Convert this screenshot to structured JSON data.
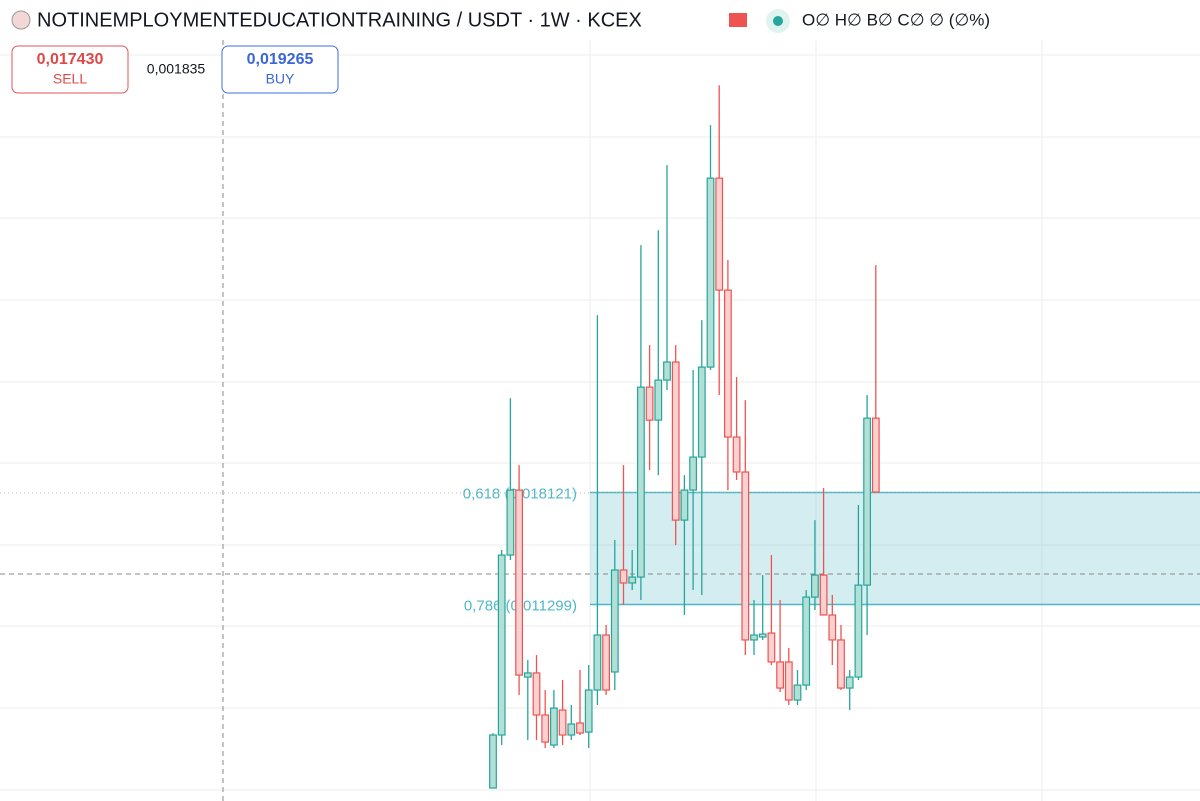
{
  "chart_data": {
    "type": "candlestick",
    "title": "NOTINEMPLOYMENTEDUCATIONTRAINING / USDT · 1W · KCEX",
    "legend": "O∅ H∅ B∅ C∅ ∅ (∅%)",
    "sell": {
      "price": "0,017430",
      "label": "SELL"
    },
    "spread": "0,001835",
    "buy": {
      "price": "0,019265",
      "label": "BUY"
    },
    "up_color": "#26a69a",
    "down_color": "#ef5350",
    "ylim": [
      0,
      0.048
    ],
    "open": [
      0.00012,
      0.00335,
      0.01431,
      0.01827,
      0.00688,
      0.00713,
      0.00457,
      0.00274,
      0.00487,
      0.00335,
      0.00408,
      0.00353,
      0.00609,
      0.00944,
      0.00719,
      0.0134,
      0.01261,
      0.01297,
      0.02454,
      0.02253,
      0.02497,
      0.02607,
      0.01644,
      0.01827,
      0.02028,
      0.02576,
      0.03727,
      0.03045,
      0.0215,
      0.01937,
      0.00914,
      0.00932,
      0.00956,
      0.0078,
      0.0078,
      0.00548,
      0.00639,
      0.01175,
      0.01309,
      0.01066,
      0.00914,
      0.00621,
      0.00688,
      0.01248,
      0.02265
    ],
    "high": [
      0.00347,
      0.01462,
      0.02387,
      0.01979,
      0.00792,
      0.00822,
      0.00609,
      0.00609,
      0.0067,
      0.00518,
      0.00731,
      0.00761,
      0.02893,
      0.01005,
      0.01523,
      0.01979,
      0.01462,
      0.03319,
      0.0271,
      0.0341,
      0.03806,
      0.0271,
      0.01918,
      0.02558,
      0.02862,
      0.0405,
      0.04293,
      0.03228,
      0.02515,
      0.02375,
      0.01157,
      0.01309,
      0.01431,
      0.01157,
      0.00865,
      0.00731,
      0.01218,
      0.01644,
      0.01839,
      0.01188,
      0.01005,
      0.00731,
      0.01736,
      0.02406,
      0.03197
    ],
    "low": [
      0.00012,
      0.00274,
      0.01401,
      0.00579,
      0.00305,
      0.00305,
      0.00256,
      0.00256,
      0.00274,
      0.00305,
      0.00335,
      0.00256,
      0.00518,
      0.00579,
      0.00609,
      0.01127,
      0.01218,
      0.01157,
      0.01949,
      0.01918,
      0.02436,
      0.01492,
      0.01066,
      0.01218,
      0.01188,
      0.02558,
      0.02406,
      0.01827,
      0.01888,
      0.00822,
      0.00822,
      0.00914,
      0.00761,
      0.00597,
      0.00518,
      0.00518,
      0.00609,
      0.01096,
      0.01066,
      0.00761,
      0.00609,
      0.00487,
      0.0067,
      0.00944,
      0.01815
    ],
    "close": [
      0.00335,
      0.01431,
      0.01827,
      0.007,
      0.00713,
      0.00457,
      0.00292,
      0.00499,
      0.00335,
      0.00402,
      0.00347,
      0.00609,
      0.00944,
      0.00609,
      0.0134,
      0.01261,
      0.01297,
      0.02454,
      0.02253,
      0.02497,
      0.02607,
      0.01644,
      0.01827,
      0.02028,
      0.02576,
      0.03727,
      0.03045,
      0.0215,
      0.01937,
      0.00914,
      0.00944,
      0.0095,
      0.0078,
      0.00621,
      0.00548,
      0.00639,
      0.01175,
      0.01309,
      0.01066,
      0.00914,
      0.00621,
      0.00688,
      0.01248,
      0.02265,
      0.01815
    ],
    "fib_levels": [
      {
        "value": 0.018121,
        "label": "0,618 (0,018121)"
      },
      {
        "value": 0.011299,
        "label": "0,786 (0,011299)"
      }
    ],
    "fib_color": "#4fb8c6"
  }
}
